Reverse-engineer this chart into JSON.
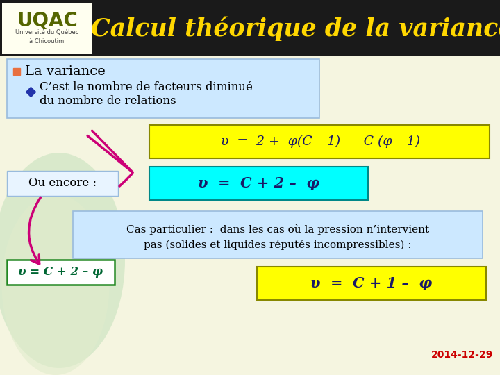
{
  "title": "Calcul théorique de la variance",
  "title_color": "#FFD700",
  "title_bg": "#1a1a1a",
  "bg_color": "#f5f5e0",
  "uqac_text": "UQAC",
  "uqac_sub": "Université du Québec\nà Chicoutimi",
  "bullet1": "La variance",
  "formula1": "υ  =  2 +  φ(C – 1)  –  C (φ – 1)",
  "formula2": "υ  =  C + 2 –  φ",
  "formula3": "υ  =  C + 1 –  φ",
  "ou_encore": "Ou encore :",
  "cas_line1": "Cas particulier :  dans les cas où la pression n’intervient",
  "cas_line2": "pas (solides et liquides réputés incompressibles) :",
  "small_formula": "υ = C + 2 – φ",
  "date": "2014-12-29",
  "formula1_bg": "#FFFF00",
  "formula1_edge": "#888800",
  "formula2_bg": "#00FFFF",
  "formula2_edge": "#008888",
  "formula3_bg": "#FFFF00",
  "formula3_edge": "#888800",
  "small_formula_bg": "#ffffff",
  "small_formula_edge": "#228822",
  "bullet_box_bg": "#cce8ff",
  "bullet_box_edge": "#99bbdd",
  "cas_box_bg": "#cce8ff",
  "cas_box_edge": "#99bbdd",
  "ou_encore_box_bg": "#e8f4ff",
  "ou_encore_box_edge": "#99bbdd",
  "arrow_color": "#cc0077",
  "bullet_sq_color": "#e87040",
  "diamond_color": "#2233aa",
  "uqac_color": "#556600",
  "uqac_bg": "#fffff0",
  "formula_text_color": "#1a1a66",
  "body_text_color": "#000000",
  "date_color": "#cc0000",
  "ellipse_color": "#d5e8c8",
  "ellipse2_color": "#e0eccc"
}
